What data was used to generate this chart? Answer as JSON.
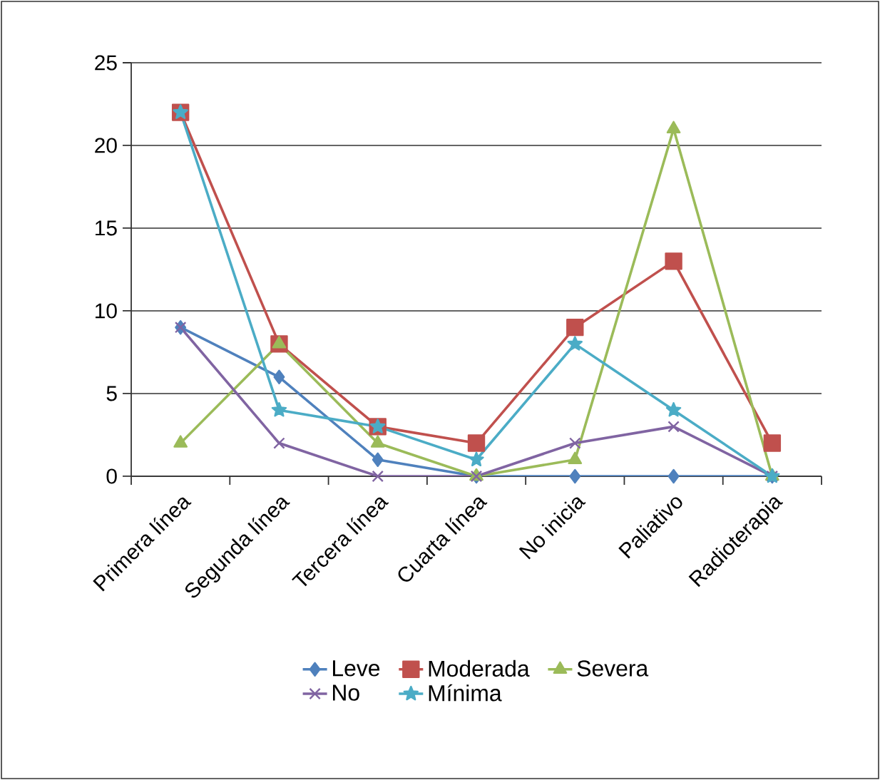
{
  "chart_data": {
    "type": "line",
    "categories": [
      "Primera línea",
      "Segunda línea",
      "Tercera línea",
      "Cuarta línea",
      "No inicia",
      "Paliativo",
      "Radioterapia"
    ],
    "series": [
      {
        "name": "Leve",
        "color": "#4f81bd",
        "marker": "diamond",
        "values": [
          9,
          6,
          1,
          0,
          0,
          0,
          0
        ]
      },
      {
        "name": "Moderada",
        "color": "#c0504d",
        "marker": "square",
        "values": [
          22,
          8,
          3,
          2,
          9,
          13,
          2
        ]
      },
      {
        "name": "Severa",
        "color": "#9bbb59",
        "marker": "triangle",
        "values": [
          2,
          8,
          2,
          0,
          1,
          21,
          0
        ]
      },
      {
        "name": "No",
        "color": "#8064a2",
        "marker": "cross",
        "values": [
          9,
          2,
          0,
          0,
          2,
          3,
          0
        ]
      },
      {
        "name": "Mínima",
        "color": "#4bacc6",
        "marker": "star",
        "values": [
          22,
          4,
          3,
          1,
          8,
          4,
          0
        ]
      }
    ],
    "ylim": [
      0,
      25
    ],
    "yticks": [
      0,
      5,
      10,
      15,
      20,
      25
    ],
    "grid": "y",
    "legend": "bottom",
    "line_style": "solid"
  }
}
